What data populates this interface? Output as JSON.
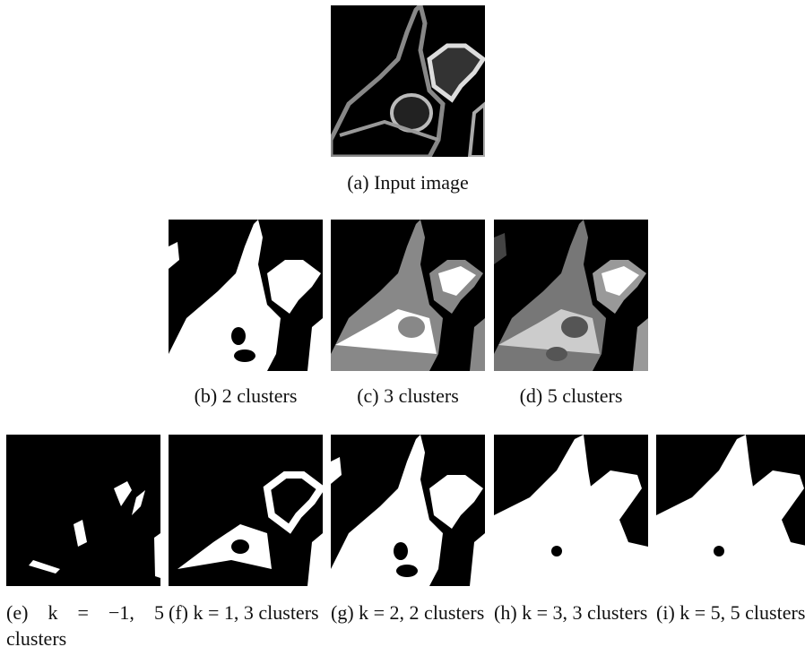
{
  "figure": {
    "panels": [
      {
        "caption": "(a) Input image"
      },
      {
        "caption": "(b) 2 clusters"
      },
      {
        "caption": "(c) 3 clusters"
      },
      {
        "caption": "(d) 5 clusters"
      },
      {
        "caption": "(e) k = −1, 5 clusters"
      },
      {
        "caption": "(f) k = 1, 3 clusters"
      },
      {
        "caption": "(g) k = 2, 2 clusters"
      },
      {
        "caption": "(h) k = 3, 3 clusters"
      },
      {
        "caption": "(i) k = 5, 5 clusters"
      }
    ]
  }
}
